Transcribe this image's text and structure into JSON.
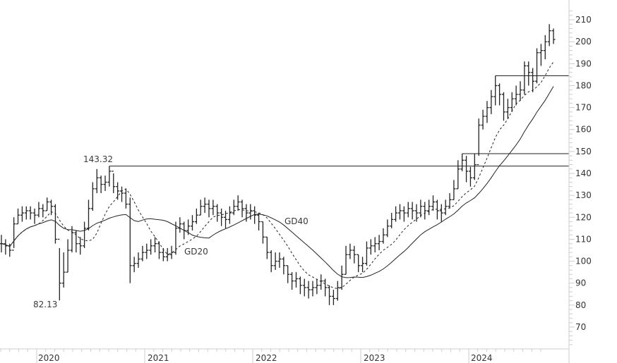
{
  "chart_data": {
    "type": "ohlc-bar",
    "interval": "2 weeks",
    "ylim": [
      60,
      215
    ],
    "y_ticks": [
      70,
      80,
      90,
      100,
      110,
      120,
      130,
      140,
      150,
      160,
      170,
      180,
      190,
      200,
      210
    ],
    "x_ticks": [
      "2020",
      "2021",
      "2022",
      "2023",
      "2024"
    ],
    "grid": false,
    "close": [
      108,
      107,
      105,
      117,
      121,
      122,
      123,
      122,
      121,
      124,
      123,
      127,
      125,
      110,
      90,
      95,
      105,
      113,
      108,
      107,
      115,
      124,
      133,
      138,
      135,
      136,
      141,
      134,
      132,
      131,
      126,
      98,
      99,
      101,
      104,
      105,
      107,
      108,
      104,
      102,
      103,
      104,
      115,
      117,
      114,
      116,
      118,
      121,
      125,
      126,
      124,
      125,
      122,
      120,
      119,
      122,
      125,
      127,
      124,
      122,
      123,
      121,
      118,
      111,
      104,
      98,
      100,
      101,
      98,
      94,
      91,
      92,
      89,
      88,
      87,
      88,
      89,
      91,
      88,
      84,
      83,
      88,
      94,
      103,
      105,
      103,
      98,
      99,
      106,
      107,
      108,
      109,
      112,
      116,
      119,
      122,
      123,
      122,
      124,
      123,
      122,
      125,
      123,
      125,
      127,
      123,
      122,
      125,
      128,
      133,
      142,
      146,
      141,
      138,
      144,
      162,
      166,
      170,
      175,
      180,
      176,
      168,
      170,
      174,
      176,
      178,
      189,
      186,
      182,
      195,
      196,
      200,
      205,
      201
    ],
    "high": [
      112,
      110,
      108,
      120,
      124,
      125,
      125,
      125,
      124,
      127,
      126,
      129,
      128,
      126,
      106,
      104,
      110,
      116,
      114,
      111,
      118,
      128,
      136,
      142,
      139,
      139,
      143.32,
      140,
      136,
      134,
      133,
      129,
      102,
      104,
      107,
      108,
      110,
      111,
      109,
      106,
      106,
      107,
      118,
      120,
      118,
      119,
      121,
      124,
      128,
      129,
      128,
      128,
      126,
      124,
      123,
      125,
      128,
      130,
      128,
      126,
      126,
      125,
      122,
      118,
      111,
      105,
      104,
      104,
      102,
      98,
      95,
      95,
      93,
      92,
      91,
      91,
      92,
      94,
      92,
      89,
      87,
      91,
      98,
      107,
      108,
      107,
      103,
      102,
      109,
      110,
      111,
      112,
      115,
      119,
      122,
      125,
      126,
      125,
      127,
      127,
      126,
      128,
      127,
      128,
      130,
      128,
      126,
      128,
      131,
      137,
      146,
      149,
      148,
      143,
      149,
      165,
      169,
      173,
      178,
      184.5,
      181,
      177,
      174,
      177,
      180,
      182,
      191,
      191,
      188,
      197,
      199,
      203,
      208,
      206
    ],
    "low": [
      104,
      103,
      102,
      106,
      117,
      118,
      119,
      119,
      117,
      120,
      120,
      123,
      121,
      108,
      82.13,
      88,
      95,
      104,
      104,
      103,
      106,
      114,
      123,
      131,
      131,
      132,
      134,
      131,
      128,
      127,
      124,
      90,
      95,
      97,
      100,
      101,
      103,
      104,
      101,
      100,
      100,
      101,
      103,
      113,
      110,
      112,
      114,
      117,
      121,
      122,
      120,
      121,
      118,
      116,
      115,
      117,
      121,
      123,
      120,
      118,
      119,
      117,
      114,
      108,
      101,
      95,
      96,
      97,
      94,
      90,
      87,
      88,
      85,
      84,
      83,
      84,
      85,
      87,
      84,
      80,
      80,
      82,
      87,
      94,
      101,
      99,
      95,
      95,
      98,
      103,
      104,
      105,
      108,
      111,
      115,
      118,
      119,
      118,
      120,
      119,
      118,
      120,
      119,
      121,
      123,
      119,
      118,
      121,
      124,
      128,
      133,
      141,
      136,
      134,
      137,
      148,
      160,
      163,
      167,
      171,
      171,
      164,
      165,
      168,
      171,
      173,
      176,
      180,
      177,
      181,
      189,
      192,
      198,
      199
    ],
    "indicators": [
      {
        "name": "GD20",
        "style": "dashed"
      },
      {
        "name": "GD40",
        "style": "solid"
      }
    ],
    "horizontal_lines": [
      143.32,
      149,
      184.5
    ],
    "annotations": [
      "143.32",
      "82.13"
    ]
  }
}
